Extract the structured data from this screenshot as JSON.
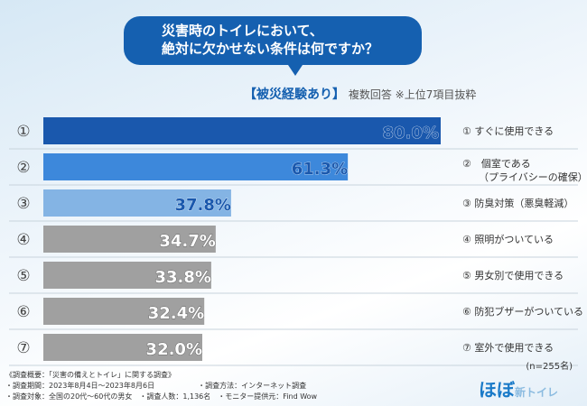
{
  "question": {
    "line1": "災害時のトイレにおいて、",
    "line2": "絶対に欠かせない条件は何ですか？"
  },
  "subtitle": {
    "group": "【被災経験あり】",
    "note": "複数回答 ※上位7項目抜粋"
  },
  "chart_data": {
    "type": "bar",
    "orientation": "horizontal",
    "title": "災害時のトイレにおいて、絶対に欠かせない条件は何ですか？",
    "ranks": [
      "①",
      "②",
      "③",
      "④",
      "⑤",
      "⑥",
      "⑦"
    ],
    "categories": [
      "① すぐに使用できる",
      "② 個室である（プライバシーの確保）",
      "③ 防臭対策（悪臭軽減）",
      "④ 照明がついている",
      "⑤ 男女別で使用できる",
      "⑥ 防犯ブザーがついている",
      "⑦ 室外で使用できる"
    ],
    "values": [
      80.0,
      61.3,
      37.8,
      34.7,
      33.8,
      32.4,
      32.0
    ],
    "labels": [
      "80.0%",
      "61.3%",
      "37.8%",
      "34.7%",
      "33.8%",
      "32.4%",
      "32.0%"
    ],
    "colors": [
      "#1a58ad",
      "#3d88db",
      "#84b4e4",
      "#a0a0a0",
      "#a0a0a0",
      "#a0a0a0",
      "#a0a0a0"
    ],
    "xlim": [
      0,
      85
    ]
  },
  "sample": "(n=255名)",
  "footer": [
    "《調査概要：「災害の備えとトイレ」に関する調査》",
    "・調査期間：2023年8月4日～2023年8月6日　　　　　　・調査方法：インターネット調査",
    "・調査対象：全国の20代～60代の男女　・調査人数：1,136名　・モニター提供元：Find Wow"
  ],
  "logo": {
    "main": "ほぼ",
    "sub": "新トイレ"
  }
}
